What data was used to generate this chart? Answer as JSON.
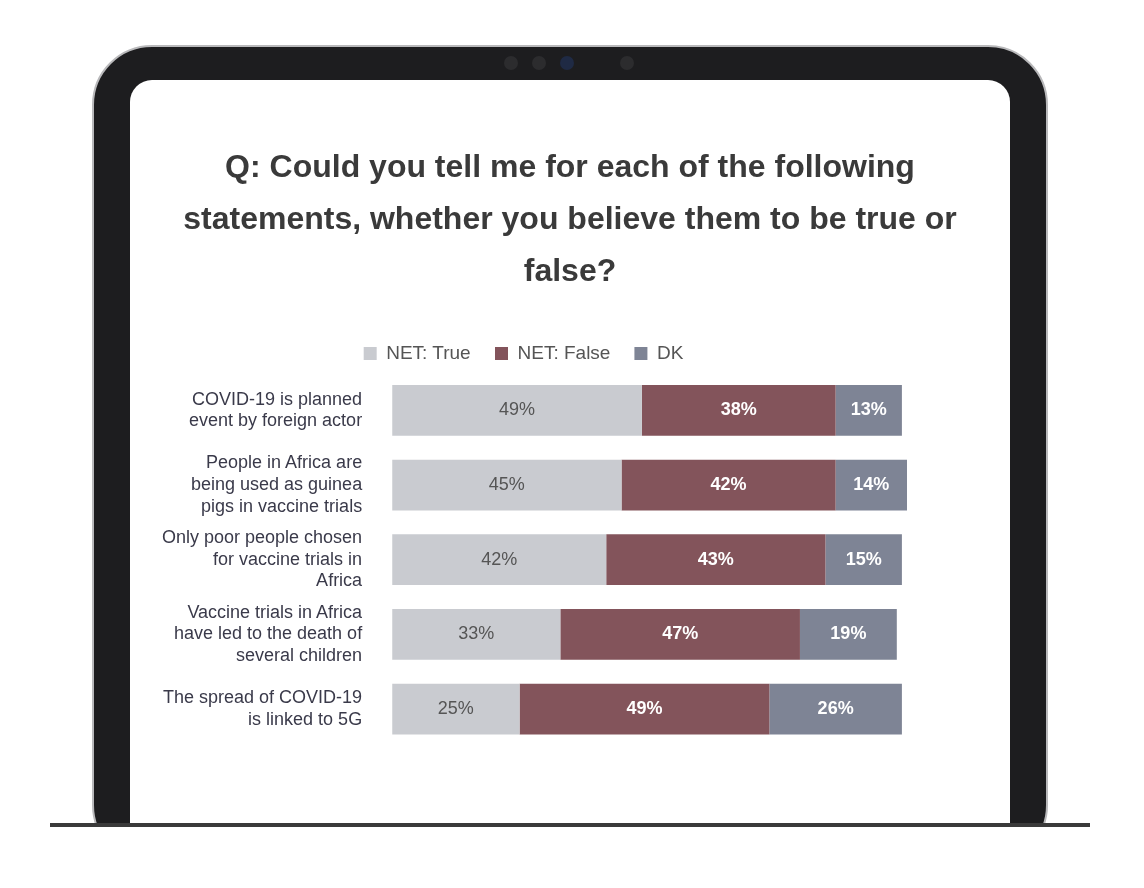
{
  "chart_data": {
    "type": "bar",
    "orientation": "horizontal",
    "stacked": true,
    "title": "Q: Could you tell me for each of the following statements, whether you believe them to be true or false?",
    "categories": [
      "COVID-19 is planned event by foreign actor",
      "People in Africa are being used as guinea pigs in vaccine trials",
      "Only poor people chosen for vaccine trials in Africa",
      "Vaccine trials in Africa have led to the death of several children",
      "The spread of COVID-19 is linked to 5G"
    ],
    "series": [
      {
        "name": "NET: True",
        "color": "#c9cbd0",
        "values": [
          49,
          45,
          42,
          33,
          25
        ],
        "value_labels": [
          "49%",
          "45%",
          "42%",
          "33%",
          "25%"
        ]
      },
      {
        "name": "NET: False",
        "color": "#83545b",
        "values": [
          38,
          42,
          43,
          47,
          49
        ],
        "value_labels": [
          "38%",
          "42%",
          "43%",
          "47%",
          "49%"
        ]
      },
      {
        "name": "DK",
        "color": "#7e8495",
        "values": [
          13,
          14,
          15,
          19,
          26
        ],
        "value_labels": [
          "13%",
          "14%",
          "15%",
          "19%",
          "26%"
        ]
      }
    ],
    "legend": "top",
    "tick_labels": "y"
  }
}
